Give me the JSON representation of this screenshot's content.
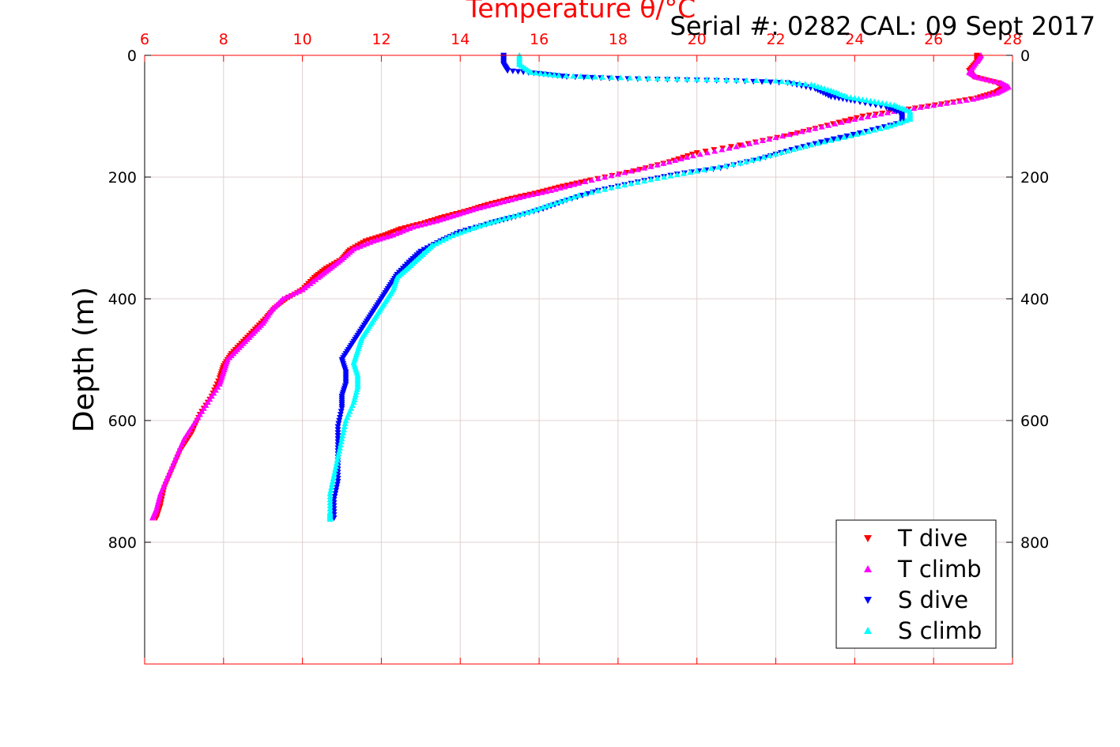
{
  "chart_data": {
    "type": "scatter",
    "title": "Temperature θ/°C",
    "subtitle": "Serial #: 0282  CAL: 09 Sept 2017",
    "xlabel": "Temperature θ/°C",
    "ylabel": "Depth (m)",
    "xlim": [
      6,
      28
    ],
    "ylim": [
      0,
      1000
    ],
    "y_reversed": true,
    "x_ticks": [
      6,
      8,
      10,
      12,
      14,
      16,
      18,
      20,
      22,
      24,
      26,
      28
    ],
    "y_ticks": [
      0,
      200,
      400,
      600,
      800
    ],
    "grid": true,
    "legend_position": "bottom-right",
    "colors": {
      "axis_top": "#ff0000",
      "axis_left": "#000000",
      "grid": "#e0d0d0"
    },
    "series": [
      {
        "name": "T dive",
        "color": "#ff0000",
        "marker": "triangle-down",
        "points": [
          [
            27.1,
            0
          ],
          [
            27.1,
            10
          ],
          [
            26.9,
            25
          ],
          [
            27.0,
            35
          ],
          [
            27.6,
            45
          ],
          [
            27.8,
            52
          ],
          [
            27.6,
            60
          ],
          [
            27.1,
            70
          ],
          [
            26.2,
            80
          ],
          [
            25.2,
            90
          ],
          [
            24.2,
            100
          ],
          [
            23.3,
            115
          ],
          [
            22.4,
            130
          ],
          [
            21.3,
            145
          ],
          [
            20.0,
            160
          ],
          [
            19.3,
            175
          ],
          [
            18.4,
            190
          ],
          [
            17.3,
            205
          ],
          [
            16.6,
            215
          ],
          [
            16.0,
            225
          ],
          [
            15.3,
            235
          ],
          [
            14.7,
            245
          ],
          [
            14.2,
            255
          ],
          [
            13.6,
            265
          ],
          [
            13.1,
            275
          ],
          [
            12.5,
            285
          ],
          [
            12.1,
            295
          ],
          [
            11.6,
            305
          ],
          [
            11.2,
            320
          ],
          [
            11.0,
            335
          ],
          [
            10.6,
            350
          ],
          [
            10.3,
            365
          ],
          [
            10.0,
            385
          ],
          [
            9.6,
            400
          ],
          [
            9.3,
            415
          ],
          [
            9.1,
            430
          ],
          [
            8.8,
            450
          ],
          [
            8.5,
            470
          ],
          [
            8.2,
            490
          ],
          [
            8.0,
            510
          ],
          [
            7.9,
            530
          ],
          [
            7.7,
            560
          ],
          [
            7.4,
            590
          ],
          [
            7.2,
            620
          ],
          [
            6.9,
            650
          ],
          [
            6.7,
            680
          ],
          [
            6.5,
            710
          ],
          [
            6.4,
            740
          ],
          [
            6.3,
            760
          ]
        ]
      },
      {
        "name": "T climb",
        "color": "#ff00ff",
        "marker": "triangle-up",
        "points": [
          [
            27.2,
            0
          ],
          [
            27.1,
            10
          ],
          [
            26.9,
            28
          ],
          [
            27.1,
            36
          ],
          [
            27.7,
            45
          ],
          [
            27.9,
            52
          ],
          [
            27.6,
            62
          ],
          [
            27.0,
            72
          ],
          [
            26.0,
            82
          ],
          [
            25.0,
            92
          ],
          [
            24.0,
            105
          ],
          [
            23.0,
            120
          ],
          [
            22.0,
            135
          ],
          [
            21.0,
            150
          ],
          [
            19.9,
            165
          ],
          [
            19.0,
            180
          ],
          [
            18.0,
            195
          ],
          [
            17.0,
            210
          ],
          [
            16.3,
            222
          ],
          [
            15.6,
            232
          ],
          [
            15.0,
            242
          ],
          [
            14.4,
            252
          ],
          [
            13.9,
            262
          ],
          [
            13.4,
            272
          ],
          [
            12.8,
            282
          ],
          [
            12.3,
            295
          ],
          [
            11.8,
            305
          ],
          [
            11.3,
            318
          ],
          [
            11.0,
            335
          ],
          [
            10.7,
            350
          ],
          [
            10.4,
            365
          ],
          [
            10.0,
            385
          ],
          [
            9.5,
            400
          ],
          [
            9.2,
            420
          ],
          [
            9.0,
            440
          ],
          [
            8.7,
            460
          ],
          [
            8.4,
            480
          ],
          [
            8.1,
            500
          ],
          [
            8.0,
            520
          ],
          [
            7.9,
            540
          ],
          [
            7.6,
            570
          ],
          [
            7.3,
            600
          ],
          [
            7.0,
            630
          ],
          [
            6.8,
            660
          ],
          [
            6.6,
            690
          ],
          [
            6.4,
            720
          ],
          [
            6.3,
            745
          ],
          [
            6.2,
            760
          ]
        ]
      },
      {
        "name": "S dive",
        "color": "#0000ff",
        "marker": "triangle-down",
        "points": [
          [
            15.1,
            0
          ],
          [
            15.1,
            15
          ],
          [
            15.2,
            25
          ],
          [
            16.0,
            30
          ],
          [
            16.7,
            35
          ],
          [
            18.0,
            38
          ],
          [
            19.5,
            40
          ],
          [
            21.0,
            42
          ],
          [
            22.3,
            45
          ],
          [
            23.0,
            55
          ],
          [
            23.4,
            68
          ],
          [
            24.0,
            75
          ],
          [
            24.8,
            85
          ],
          [
            25.2,
            95
          ],
          [
            25.2,
            110
          ],
          [
            24.3,
            125
          ],
          [
            23.3,
            140
          ],
          [
            22.4,
            155
          ],
          [
            21.6,
            170
          ],
          [
            20.6,
            185
          ],
          [
            19.5,
            195
          ],
          [
            18.5,
            208
          ],
          [
            17.5,
            222
          ],
          [
            16.7,
            238
          ],
          [
            16.1,
            252
          ],
          [
            15.4,
            265
          ],
          [
            14.8,
            275
          ],
          [
            14.0,
            290
          ],
          [
            13.5,
            305
          ],
          [
            13.0,
            322
          ],
          [
            12.7,
            340
          ],
          [
            12.4,
            360
          ],
          [
            12.2,
            380
          ],
          [
            12.0,
            400
          ],
          [
            11.8,
            420
          ],
          [
            11.6,
            440
          ],
          [
            11.4,
            460
          ],
          [
            11.2,
            480
          ],
          [
            11.0,
            500
          ],
          [
            11.1,
            520
          ],
          [
            11.1,
            540
          ],
          [
            11.0,
            560
          ],
          [
            11.0,
            580
          ],
          [
            10.9,
            610
          ],
          [
            10.9,
            640
          ],
          [
            10.9,
            670
          ],
          [
            10.9,
            700
          ],
          [
            10.8,
            730
          ],
          [
            10.8,
            760
          ]
        ]
      },
      {
        "name": "S climb",
        "color": "#00ffff",
        "marker": "triangle-up",
        "points": [
          [
            15.5,
            0
          ],
          [
            15.5,
            15
          ],
          [
            15.8,
            28
          ],
          [
            16.5,
            33
          ],
          [
            17.6,
            36
          ],
          [
            19.0,
            38
          ],
          [
            20.5,
            40
          ],
          [
            22.0,
            42
          ],
          [
            22.9,
            48
          ],
          [
            23.4,
            58
          ],
          [
            23.8,
            68
          ],
          [
            24.4,
            75
          ],
          [
            25.0,
            82
          ],
          [
            25.4,
            92
          ],
          [
            25.4,
            105
          ],
          [
            24.8,
            118
          ],
          [
            23.9,
            132
          ],
          [
            22.9,
            147
          ],
          [
            22.0,
            162
          ],
          [
            21.1,
            177
          ],
          [
            20.0,
            190
          ],
          [
            19.0,
            202
          ],
          [
            18.0,
            215
          ],
          [
            17.0,
            230
          ],
          [
            16.3,
            245
          ],
          [
            15.7,
            258
          ],
          [
            15.0,
            270
          ],
          [
            14.4,
            282
          ],
          [
            13.8,
            296
          ],
          [
            13.3,
            312
          ],
          [
            13.0,
            330
          ],
          [
            12.7,
            348
          ],
          [
            12.4,
            365
          ],
          [
            12.3,
            385
          ],
          [
            12.1,
            405
          ],
          [
            11.9,
            425
          ],
          [
            11.7,
            445
          ],
          [
            11.5,
            465
          ],
          [
            11.4,
            485
          ],
          [
            11.3,
            505
          ],
          [
            11.4,
            525
          ],
          [
            11.4,
            545
          ],
          [
            11.3,
            570
          ],
          [
            11.1,
            600
          ],
          [
            11.0,
            630
          ],
          [
            10.9,
            660
          ],
          [
            10.8,
            690
          ],
          [
            10.7,
            720
          ],
          [
            10.7,
            750
          ],
          [
            10.7,
            762
          ]
        ]
      }
    ]
  }
}
